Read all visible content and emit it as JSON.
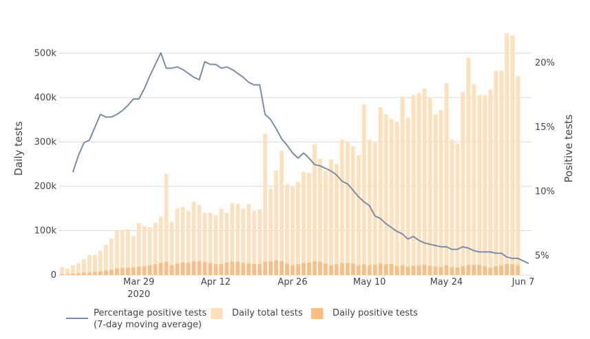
{
  "chart_data": {
    "type": "bar",
    "x_dates": [
      "Mar 15",
      "Mar 16",
      "Mar 17",
      "Mar 18",
      "Mar 19",
      "Mar 20",
      "Mar 21",
      "Mar 22",
      "Mar 23",
      "Mar 24",
      "Mar 25",
      "Mar 26",
      "Mar 27",
      "Mar 28",
      "Mar 29",
      "Mar 30",
      "Mar 31",
      "Apr 1",
      "Apr 2",
      "Apr 3",
      "Apr 4",
      "Apr 5",
      "Apr 6",
      "Apr 7",
      "Apr 8",
      "Apr 9",
      "Apr 10",
      "Apr 11",
      "Apr 12",
      "Apr 13",
      "Apr 14",
      "Apr 15",
      "Apr 16",
      "Apr 17",
      "Apr 18",
      "Apr 19",
      "Apr 20",
      "Apr 21",
      "Apr 22",
      "Apr 23",
      "Apr 24",
      "Apr 25",
      "Apr 26",
      "Apr 27",
      "Apr 28",
      "Apr 29",
      "Apr 30",
      "May 1",
      "May 2",
      "May 3",
      "May 4",
      "May 5",
      "May 6",
      "May 7",
      "May 8",
      "May 9",
      "May 10",
      "May 11",
      "May 12",
      "May 13",
      "May 14",
      "May 15",
      "May 16",
      "May 17",
      "May 18",
      "May 19",
      "May 20",
      "May 21",
      "May 22",
      "May 23",
      "May 24",
      "May 25",
      "May 26",
      "May 27",
      "May 28",
      "May 29",
      "May 30",
      "May 31",
      "Jun 1",
      "Jun 2",
      "Jun 3",
      "Jun 4",
      "Jun 5",
      "Jun 6",
      "Jun 7",
      "Jun 8"
    ],
    "x_ticks": [
      {
        "date": "Mar 29",
        "label": "Mar 29",
        "sublabel": "2020"
      },
      {
        "date": "Apr 12",
        "label": "Apr 12",
        "sublabel": ""
      },
      {
        "date": "Apr 26",
        "label": "Apr 26",
        "sublabel": ""
      },
      {
        "date": "May 10",
        "label": "May 10",
        "sublabel": ""
      },
      {
        "date": "May 24",
        "label": "May 24",
        "sublabel": ""
      },
      {
        "date": "Jun 7",
        "label": "Jun 7",
        "sublabel": ""
      }
    ],
    "y_left": {
      "label": "Daily tests",
      "range": [
        0,
        550000
      ],
      "ticks": [
        0,
        100000,
        200000,
        300000,
        400000,
        500000
      ],
      "tick_labels": [
        "0",
        "100k",
        "200k",
        "300k",
        "400k",
        "500k"
      ]
    },
    "y_right": {
      "label": "Positive tests",
      "range": [
        3.5,
        22.5
      ],
      "ticks": [
        5,
        10,
        15,
        20
      ],
      "tick_labels": [
        "5%",
        "10%",
        "15%",
        "20%"
      ]
    },
    "grid": true,
    "legend_position": "bottom",
    "series": [
      {
        "name": "Daily total tests",
        "type": "bar",
        "color": "#fde0bc",
        "values": [
          18000,
          15000,
          22000,
          27000,
          35000,
          45000,
          45000,
          55000,
          68000,
          82000,
          100000,
          102000,
          103000,
          88000,
          117000,
          110000,
          108000,
          118000,
          132000,
          228000,
          120000,
          150000,
          153000,
          145000,
          165000,
          158000,
          140000,
          140000,
          135000,
          150000,
          140000,
          162000,
          160000,
          150000,
          160000,
          145000,
          148000,
          318000,
          195000,
          235000,
          280000,
          205000,
          198000,
          210000,
          232000,
          230000,
          295000,
          262000,
          235000,
          260000,
          250000,
          305000,
          300000,
          290000,
          270000,
          385000,
          305000,
          298000,
          378000,
          362000,
          352000,
          345000,
          402000,
          355000,
          405000,
          410000,
          420000,
          400000,
          362000,
          372000,
          432000,
          305000,
          296000,
          412000,
          490000,
          430000,
          405000,
          405000,
          418000,
          460000,
          460000,
          545000,
          540000,
          448000
        ]
      },
      {
        "name": "Daily positive tests",
        "type": "bar",
        "color": "#f9be85",
        "values": [
          2000,
          2000,
          3000,
          4000,
          5000,
          6000,
          7000,
          8000,
          10000,
          12000,
          15000,
          16000,
          17000,
          17000,
          19000,
          20000,
          22000,
          24000,
          27000,
          30000,
          22000,
          26000,
          28000,
          28000,
          31000,
          31000,
          29000,
          27000,
          24000,
          25000,
          28000,
          30000,
          30000,
          27000,
          26000,
          25000,
          25000,
          30000,
          31000,
          33000,
          31000,
          26000,
          22000,
          24000,
          27000,
          28000,
          31000,
          30000,
          26000,
          22000,
          24000,
          27000,
          27000,
          26000,
          22000,
          24000,
          22000,
          23000,
          26000,
          24000,
          25000,
          20000,
          22000,
          19000,
          21000,
          21000,
          23000,
          21000,
          19000,
          18000,
          22000,
          18000,
          17000,
          20000,
          23000,
          23000,
          23000,
          20000,
          16000,
          20000,
          22000,
          25000,
          24000,
          22000
        ]
      },
      {
        "name": "Percentage positive tests (7-day moving average)",
        "type": "line",
        "color": "#7a8ba8",
        "start_date": "Mar 17",
        "values": [
          11.5,
          12.8,
          13.8,
          14.0,
          15.0,
          16.0,
          15.8,
          15.8,
          16.0,
          16.3,
          16.7,
          17.2,
          17.2,
          18.0,
          19.0,
          19.9,
          20.8,
          19.6,
          19.6,
          19.7,
          19.5,
          19.2,
          18.9,
          18.7,
          20.1,
          19.9,
          19.9,
          19.6,
          19.7,
          19.5,
          19.2,
          18.9,
          18.5,
          18.3,
          18.3,
          16.0,
          15.6,
          14.9,
          14.1,
          13.6,
          13.0,
          12.6,
          13.0,
          12.6,
          12.1,
          12.0,
          11.8,
          11.6,
          11.3,
          10.8,
          10.6,
          10.1,
          9.6,
          9.2,
          8.9,
          8.1,
          7.9,
          7.5,
          7.2,
          6.9,
          6.7,
          6.3,
          6.5,
          6.2,
          6.0,
          5.9,
          5.8,
          5.7,
          5.7,
          5.5,
          5.5,
          5.7,
          5.6,
          5.4,
          5.3,
          5.3,
          5.3,
          5.2,
          5.2,
          4.9,
          4.8,
          4.8,
          4.6,
          4.4
        ]
      }
    ],
    "legend": [
      {
        "key": "line",
        "label_line1": "Percentage positive tests",
        "label_line2": "(7-day moving average)"
      },
      {
        "key": "total",
        "label_line1": "Daily total tests",
        "label_line2": ""
      },
      {
        "key": "positive",
        "label_line1": "Daily positive tests",
        "label_line2": ""
      }
    ],
    "gridline_color": "#d9d9d9"
  }
}
